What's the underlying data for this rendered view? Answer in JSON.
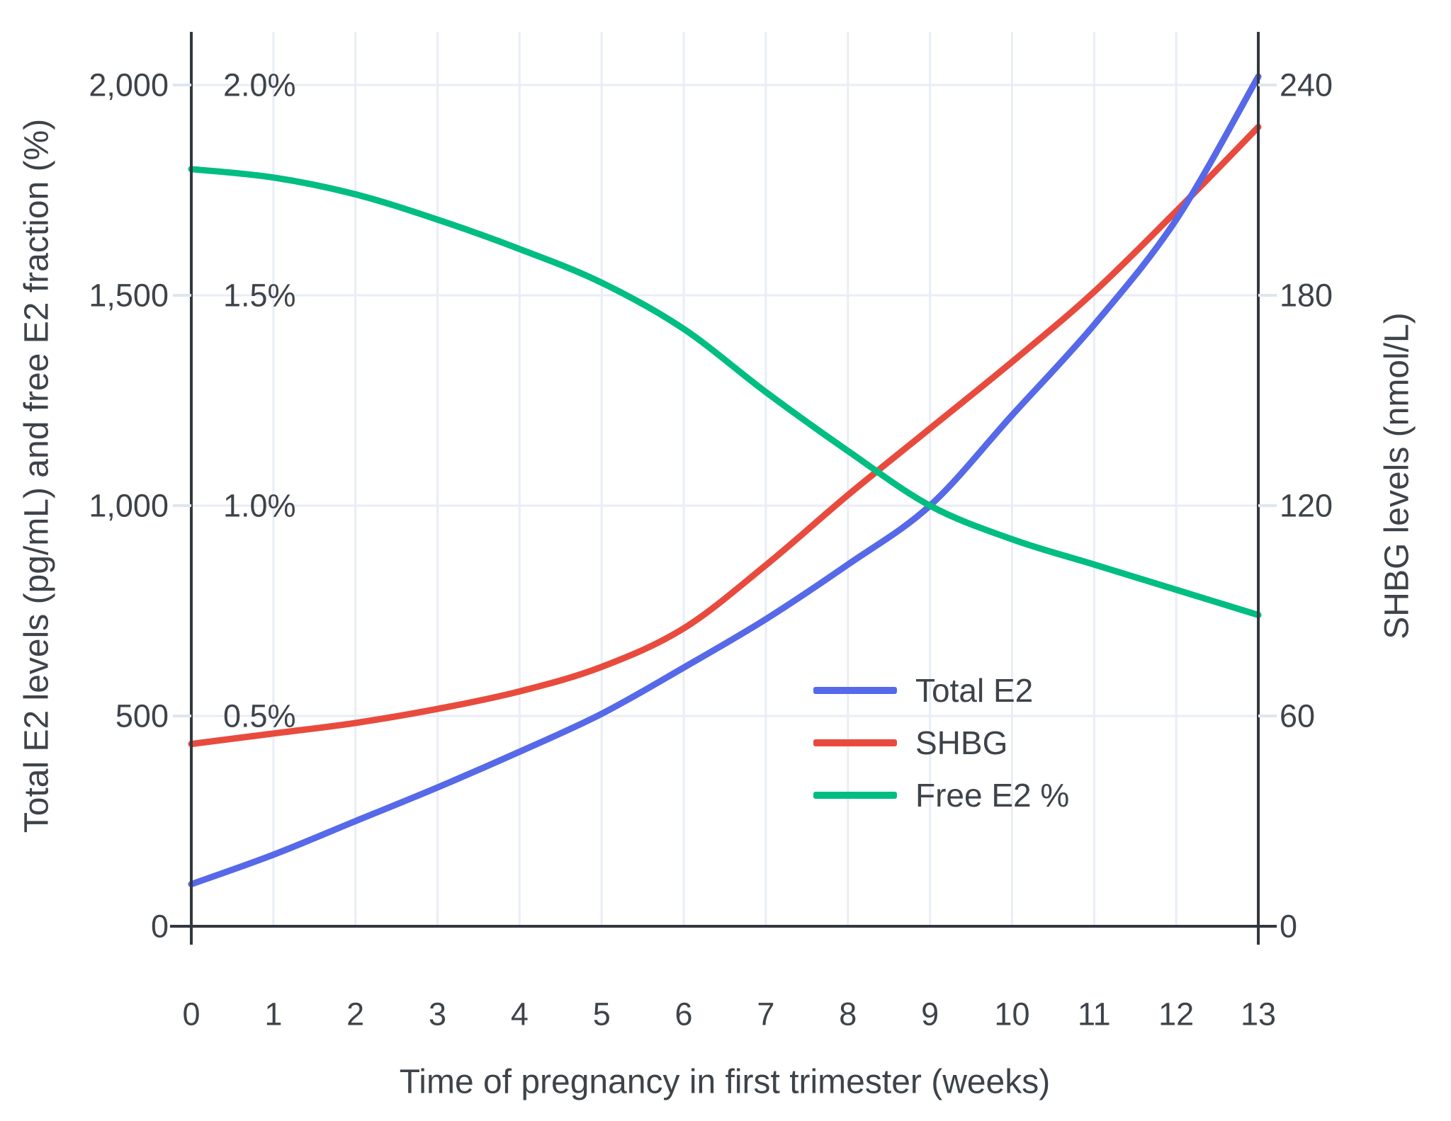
{
  "chart_data": {
    "type": "line",
    "title": "",
    "xlabel": "Time of pregnancy in first trimester (weeks)",
    "ylabel_left": "Total E2 levels (pg/mL) and free E2 fraction (%)",
    "ylabel_right": "SHBG levels (nmol/L)",
    "x": [
      0,
      1,
      2,
      3,
      4,
      5,
      6,
      7,
      8,
      9,
      10,
      11,
      12,
      13
    ],
    "x_tick_labels": [
      "0",
      "1",
      "2",
      "3",
      "4",
      "5",
      "6",
      "7",
      "8",
      "9",
      "10",
      "11",
      "12",
      "13"
    ],
    "left_tick_labels": [
      "0",
      "500",
      "1,000",
      "1,500",
      "2,000"
    ],
    "left_tick_values": [
      0,
      500,
      1000,
      1500,
      2000
    ],
    "percent_tick_labels": [
      "0.5%",
      "1.0%",
      "1.5%",
      "2.0%"
    ],
    "percent_tick_values": [
      500,
      1000,
      1500,
      2000
    ],
    "right_tick_labels": [
      "0",
      "60",
      "120",
      "180",
      "240"
    ],
    "right_tick_values": [
      0,
      60,
      120,
      180,
      240
    ],
    "xlim": [
      0,
      13
    ],
    "ylim_left": [
      0,
      2120
    ],
    "ylim_right": [
      0,
      254
    ],
    "grid": true,
    "legend_position": "inside-middle-right",
    "series": [
      {
        "name": "Total E2",
        "color": "#5669e8",
        "axis": "left",
        "unit": "pg/mL",
        "values": [
          100,
          170,
          250,
          330,
          415,
          505,
          615,
          730,
          860,
          1000,
          1215,
          1430,
          1680,
          2020
        ]
      },
      {
        "name": "SHBG",
        "color": "#e84b3d",
        "axis": "right",
        "unit": "nmol/L",
        "values": [
          52,
          55,
          58,
          62,
          67,
          74,
          85,
          103,
          123,
          142,
          161,
          181,
          204,
          228
        ]
      },
      {
        "name": "Free E2 %",
        "color": "#00bd82",
        "axis": "left-percent",
        "unit": "%",
        "values": [
          1.8,
          1.78,
          1.74,
          1.68,
          1.61,
          1.53,
          1.42,
          1.27,
          1.13,
          1.0,
          0.92,
          0.86,
          0.8,
          0.74
        ]
      }
    ]
  },
  "styles": {
    "background": "#ffffff",
    "grid_color": "#e9edf6",
    "axis_color": "#33383e",
    "tick_color": "#dfe5f0",
    "text_color": "#3e434a"
  }
}
